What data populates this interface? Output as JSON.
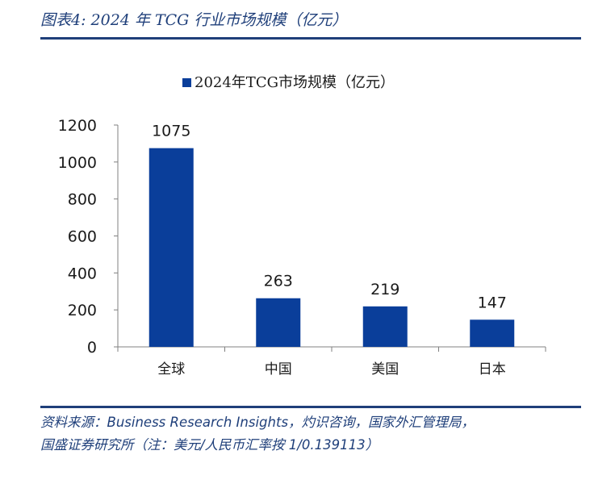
{
  "figure": {
    "title": "图表4:  2024 年 TCG 行业市场规模（亿元）",
    "source_line1": "资料来源：Business Research Insights，灼识咨询，国家外汇管理局，",
    "source_line2": "国盛证券研究所（注：美元/人民币汇率按 1/0.139113）"
  },
  "colors": {
    "bar": "#0a3e9a",
    "axis": "#808080",
    "accent": "#1f3f7a"
  },
  "chart_data": {
    "type": "bar",
    "categories": [
      "全球",
      "中国",
      "美国",
      "日本"
    ],
    "series": [
      {
        "name": "2024年TCG市场规模（亿元）",
        "values": [
          1075,
          263,
          219,
          147
        ]
      }
    ],
    "data_labels": [
      "1075",
      "263",
      "219",
      "147"
    ],
    "ylim": [
      0,
      1200
    ],
    "yticks": [
      0,
      200,
      400,
      600,
      800,
      1000,
      1200
    ],
    "grid": false,
    "legend_position": "top-center"
  }
}
